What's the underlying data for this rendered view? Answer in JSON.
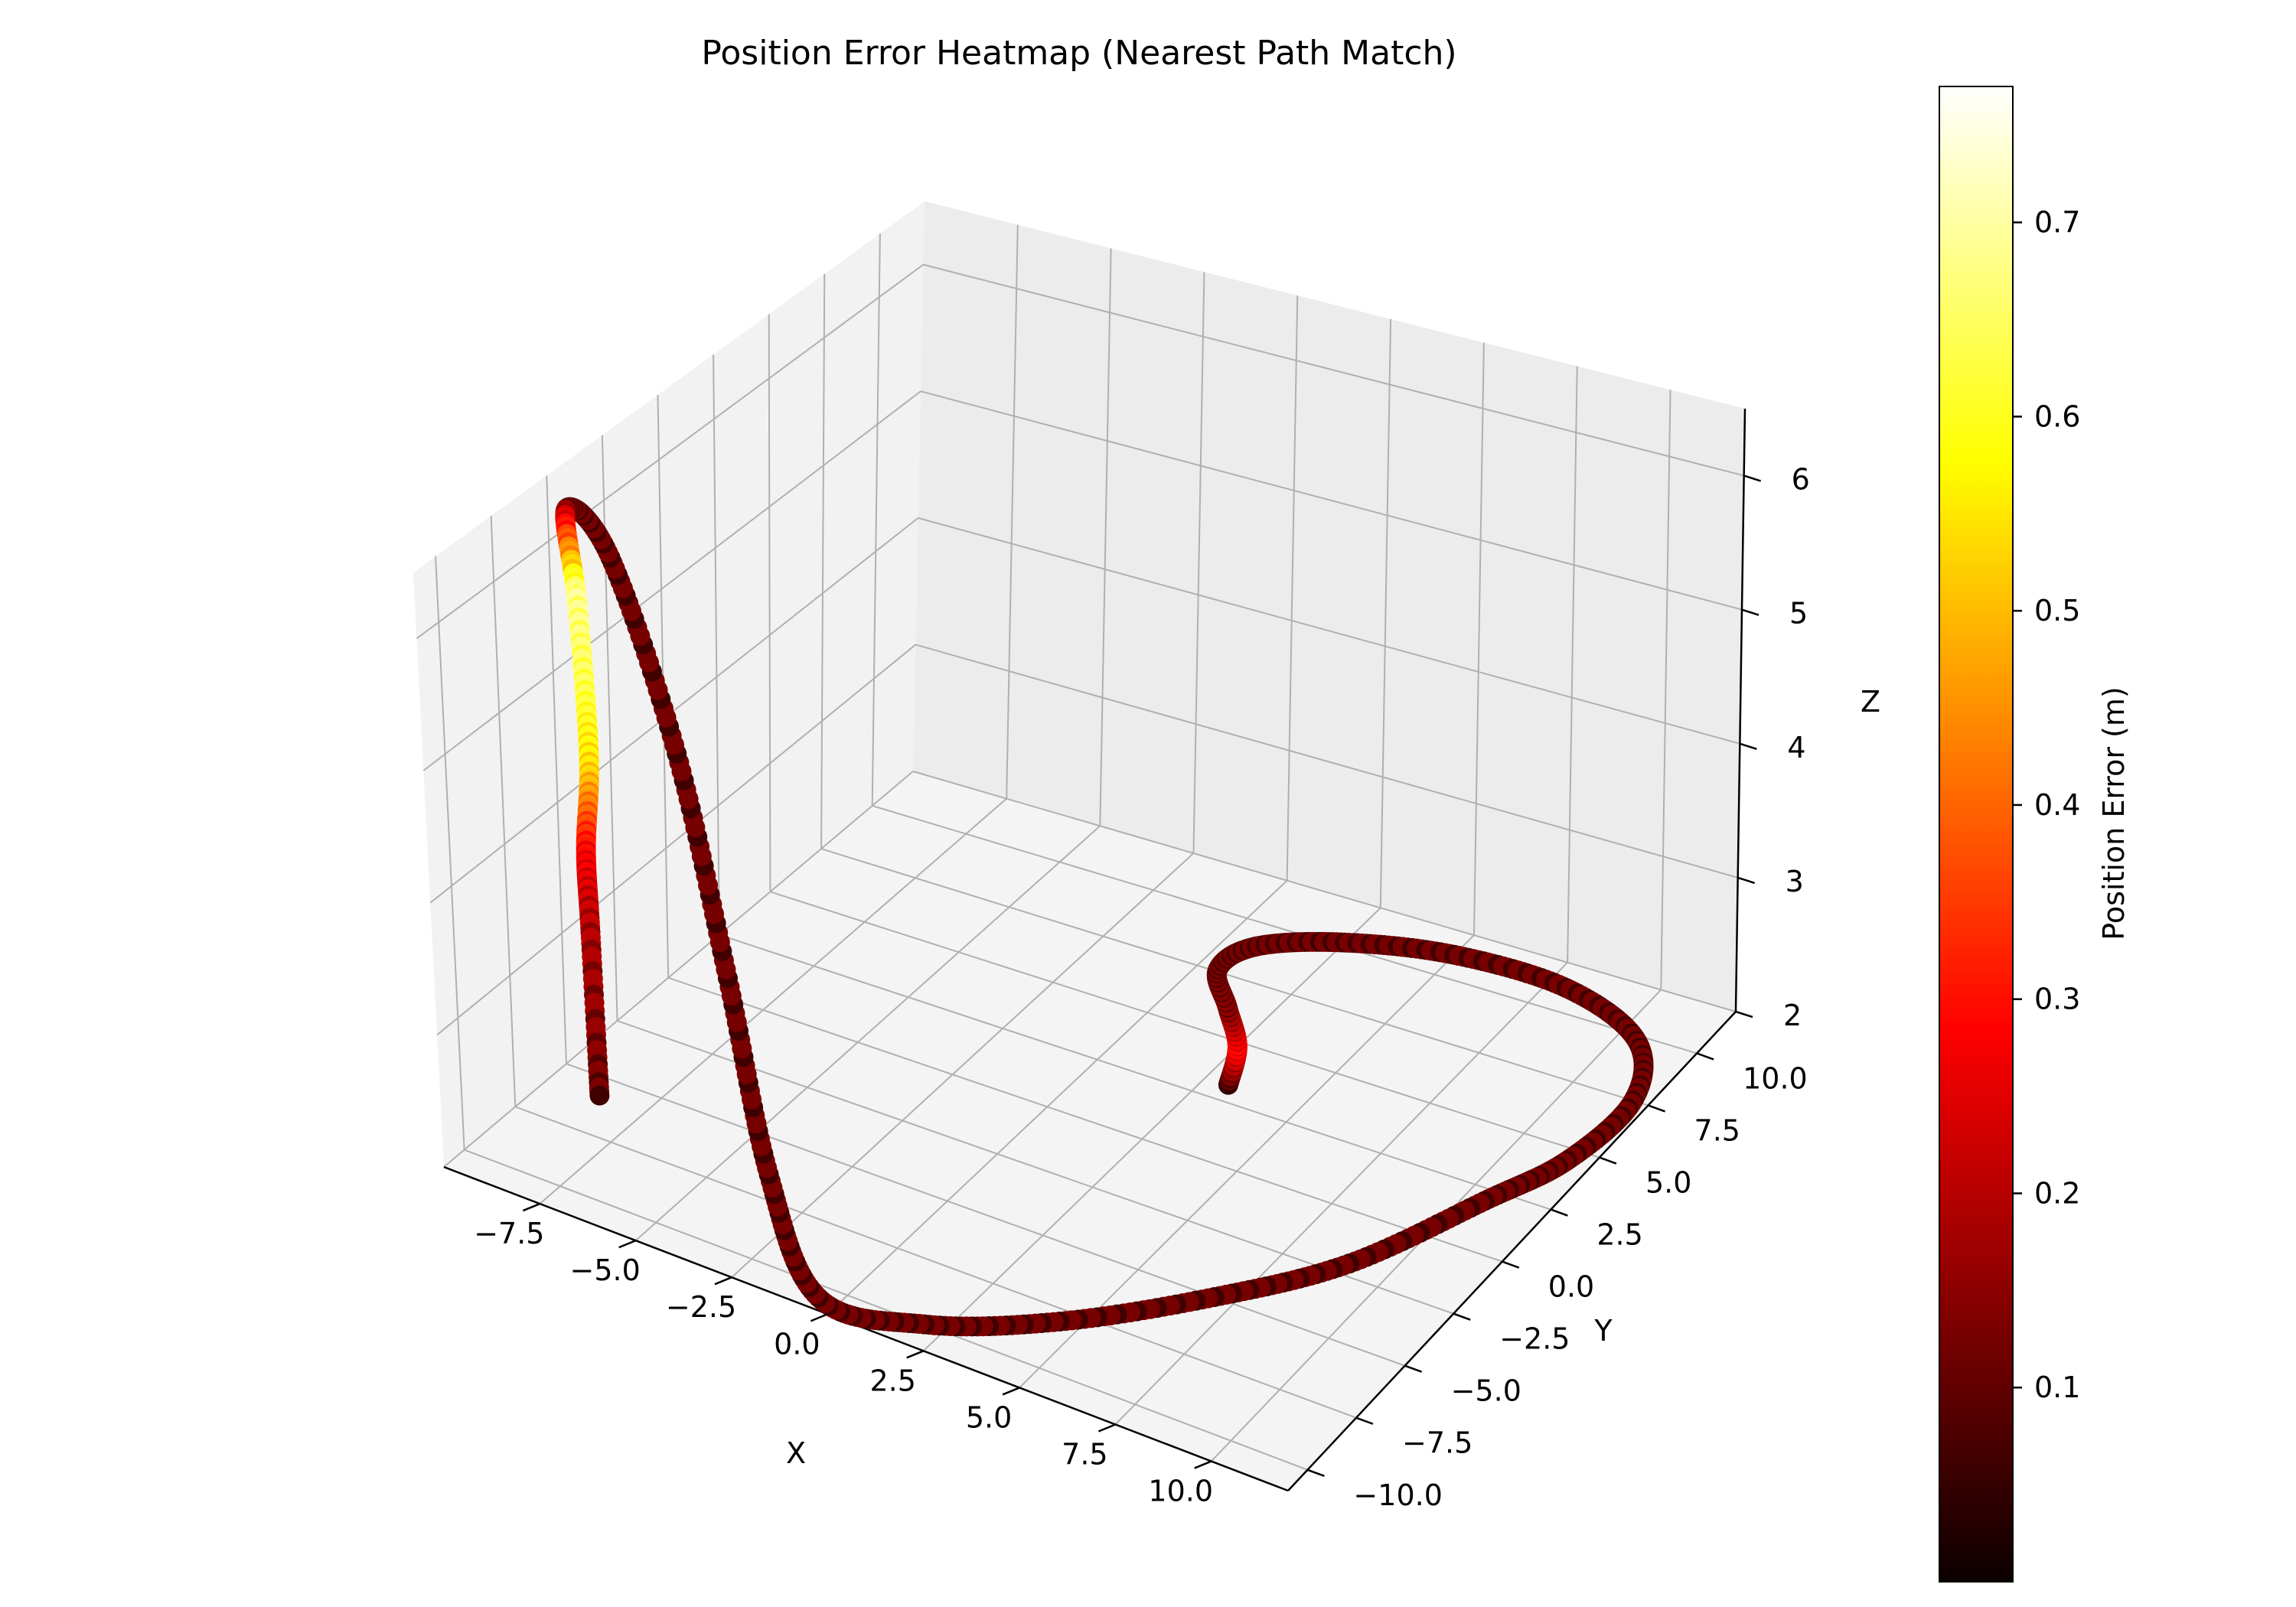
{
  "chart_data": {
    "type": "scatter3d",
    "title": "Position Error Heatmap (Nearest Path Match)",
    "xlabel": "X",
    "ylabel": "Y",
    "zlabel": "Z",
    "xlim": [
      -10,
      12
    ],
    "ylim": [
      -11,
      12
    ],
    "zlim": [
      2,
      6.5
    ],
    "x_ticks": [
      "−7.5",
      "−5.0",
      "−2.5",
      "0.0",
      "2.5",
      "5.0",
      "7.5",
      "10.0"
    ],
    "y_ticks": [
      "−10.0",
      "−7.5",
      "−5.0",
      "−2.5",
      "0.0",
      "2.5",
      "5.0",
      "7.5",
      "10.0"
    ],
    "z_ticks": [
      "2",
      "3",
      "4",
      "5",
      "6"
    ],
    "grid": true,
    "colorbar": {
      "label": "Position Error (m)",
      "colormap": "hot",
      "range": [
        0.0,
        0.77
      ],
      "ticks": [
        "0.1",
        "0.2",
        "0.3",
        "0.4",
        "0.5",
        "0.6",
        "0.7"
      ]
    },
    "series": [
      {
        "points": [
          {
            "x": 3.1,
            "y": 3.2,
            "z": 2.0,
            "error": 0.05
          },
          {
            "x": 2.5,
            "y": 4.8,
            "z": 2.0,
            "error": 0.3
          },
          {
            "x": 1.5,
            "y": 6.2,
            "z": 2.0,
            "error": 0.15
          },
          {
            "x": 0.5,
            "y": 7.6,
            "z": 2.0,
            "error": 0.12
          },
          {
            "x": 0.8,
            "y": 9.0,
            "z": 2.0,
            "error": 0.12
          },
          {
            "x": 2.5,
            "y": 10.2,
            "z": 2.0,
            "error": 0.12
          },
          {
            "x": 5.0,
            "y": 11.0,
            "z": 2.0,
            "error": 0.12
          },
          {
            "x": 8.0,
            "y": 11.0,
            "z": 2.0,
            "error": 0.12
          },
          {
            "x": 10.5,
            "y": 9.8,
            "z": 2.0,
            "error": 0.12
          },
          {
            "x": 11.6,
            "y": 7.5,
            "z": 2.0,
            "error": 0.12
          },
          {
            "x": 11.4,
            "y": 4.5,
            "z": 2.0,
            "error": 0.12
          },
          {
            "x": 10.5,
            "y": 2.0,
            "z": 2.0,
            "error": 0.12
          },
          {
            "x": 9.0,
            "y": -2.0,
            "z": 2.0,
            "error": 0.12
          },
          {
            "x": 7.0,
            "y": -5.0,
            "z": 2.0,
            "error": 0.12
          },
          {
            "x": 4.5,
            "y": -8.0,
            "z": 2.0,
            "error": 0.12
          },
          {
            "x": 2.0,
            "y": -10.0,
            "z": 2.0,
            "error": 0.12
          },
          {
            "x": -0.5,
            "y": -10.5,
            "z": 2.0,
            "error": 0.12
          },
          {
            "x": -2.5,
            "y": -9.0,
            "z": 2.5,
            "error": 0.12
          },
          {
            "x": -4.5,
            "y": -7.0,
            "z": 3.5,
            "error": 0.12
          },
          {
            "x": -6.5,
            "y": -5.5,
            "z": 4.8,
            "error": 0.12
          },
          {
            "x": -8.5,
            "y": -4.8,
            "z": 6.0,
            "error": 0.12
          },
          {
            "x": -9.5,
            "y": -5.0,
            "z": 6.3,
            "error": 0.12
          },
          {
            "x": -9.2,
            "y": -5.2,
            "z": 5.7,
            "error": 0.7
          },
          {
            "x": -9.0,
            "y": -5.3,
            "z": 5.0,
            "error": 0.65
          },
          {
            "x": -8.9,
            "y": -5.4,
            "z": 4.4,
            "error": 0.55
          },
          {
            "x": -9.0,
            "y": -5.5,
            "z": 3.8,
            "error": 0.3
          },
          {
            "x": -8.9,
            "y": -5.6,
            "z": 3.2,
            "error": 0.2
          },
          {
            "x": -8.7,
            "y": -5.8,
            "z": 2.0,
            "error": 0.12
          }
        ]
      }
    ]
  }
}
